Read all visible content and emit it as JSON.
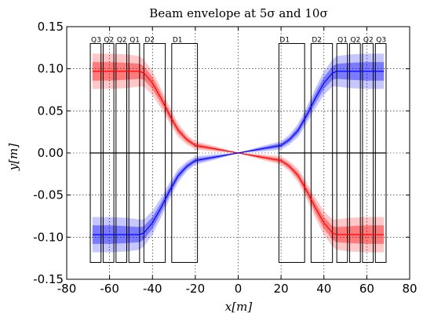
{
  "chart_data": {
    "type": "area",
    "title": "Beam envelope at 5σ and 10σ",
    "xlabel": "x[m]",
    "ylabel": "y[m]",
    "xlim": [
      -80,
      80
    ],
    "ylim": [
      -0.15,
      0.15
    ],
    "xticks": [
      "-80",
      "-60",
      "-40",
      "-20",
      "0",
      "20",
      "40",
      "60",
      "80"
    ],
    "yticks": [
      "-0.15",
      "-0.10",
      "-0.05",
      "0.00",
      "0.05",
      "0.10",
      "0.15"
    ],
    "grid": true,
    "magnets": [
      {
        "name": "Q3",
        "x0": -69,
        "x1": -64
      },
      {
        "name": "Q2",
        "x0": -63,
        "x1": -58
      },
      {
        "name": "Q2",
        "x0": -57,
        "x1": -52
      },
      {
        "name": "Q1",
        "x0": -51,
        "x1": -46
      },
      {
        "name": "D2",
        "x0": -44,
        "x1": -34
      },
      {
        "name": "D1",
        "x0": -31,
        "x1": -19
      },
      {
        "name": "D1",
        "x0": 19,
        "x1": 31
      },
      {
        "name": "D2",
        "x0": 34,
        "x1": 44
      },
      {
        "name": "Q1",
        "x0": 46,
        "x1": 51
      },
      {
        "name": "Q2",
        "x0": 52,
        "x1": 57
      },
      {
        "name": "Q2",
        "x0": 58,
        "x1": 63
      },
      {
        "name": "Q3",
        "x0": 64,
        "x1": 69
      }
    ],
    "magnet_ylim": [
      -0.13,
      0.13
    ],
    "series": [
      {
        "color": "#ff0000",
        "x": [
          -68,
          -60,
          -52,
          -46,
          -44,
          -40,
          -36,
          -32,
          -28,
          -24,
          -20,
          -10,
          0,
          10,
          20,
          24,
          28,
          32,
          36,
          40,
          44,
          46,
          52,
          60,
          68
        ],
        "y": [
          0.097,
          0.097,
          0.097,
          0.097,
          0.095,
          0.083,
          0.065,
          0.045,
          0.027,
          0.016,
          0.009,
          0.0045,
          0,
          -0.0045,
          -0.009,
          -0.016,
          -0.027,
          -0.045,
          -0.065,
          -0.083,
          -0.095,
          -0.097,
          -0.097,
          -0.097,
          -0.097
        ],
        "band_5sigma": [
          0.011,
          0.011,
          0.01,
          0.009,
          0.008,
          0.007,
          0.006,
          0.005,
          0.004,
          0.003,
          0.0025,
          0.0015,
          0,
          0.0015,
          0.0025,
          0.003,
          0.004,
          0.005,
          0.006,
          0.007,
          0.008,
          0.009,
          0.01,
          0.011,
          0.011
        ],
        "band_10sigma": [
          0.021,
          0.021,
          0.02,
          0.018,
          0.016,
          0.014,
          0.012,
          0.01,
          0.008,
          0.006,
          0.005,
          0.003,
          0,
          0.003,
          0.005,
          0.006,
          0.008,
          0.01,
          0.012,
          0.014,
          0.016,
          0.018,
          0.02,
          0.021,
          0.021
        ]
      },
      {
        "color": "#0000ff",
        "x": [
          -68,
          -60,
          -52,
          -46,
          -44,
          -40,
          -36,
          -32,
          -28,
          -24,
          -20,
          -10,
          0,
          10,
          20,
          24,
          28,
          32,
          36,
          40,
          44,
          46,
          52,
          60,
          68
        ],
        "y": [
          -0.097,
          -0.097,
          -0.097,
          -0.097,
          -0.095,
          -0.083,
          -0.065,
          -0.045,
          -0.027,
          -0.016,
          -0.009,
          -0.0045,
          0,
          0.0045,
          0.009,
          0.016,
          0.027,
          0.045,
          0.065,
          0.083,
          0.095,
          0.097,
          0.097,
          0.097,
          0.097
        ],
        "band_5sigma": [
          0.011,
          0.011,
          0.01,
          0.009,
          0.008,
          0.007,
          0.006,
          0.005,
          0.004,
          0.003,
          0.0025,
          0.0015,
          0,
          0.0015,
          0.0025,
          0.003,
          0.004,
          0.005,
          0.006,
          0.007,
          0.008,
          0.009,
          0.01,
          0.011,
          0.011
        ],
        "band_10sigma": [
          0.021,
          0.021,
          0.02,
          0.018,
          0.016,
          0.014,
          0.012,
          0.01,
          0.008,
          0.006,
          0.005,
          0.003,
          0,
          0.003,
          0.005,
          0.006,
          0.008,
          0.01,
          0.012,
          0.014,
          0.016,
          0.018,
          0.02,
          0.021,
          0.021
        ]
      }
    ]
  }
}
